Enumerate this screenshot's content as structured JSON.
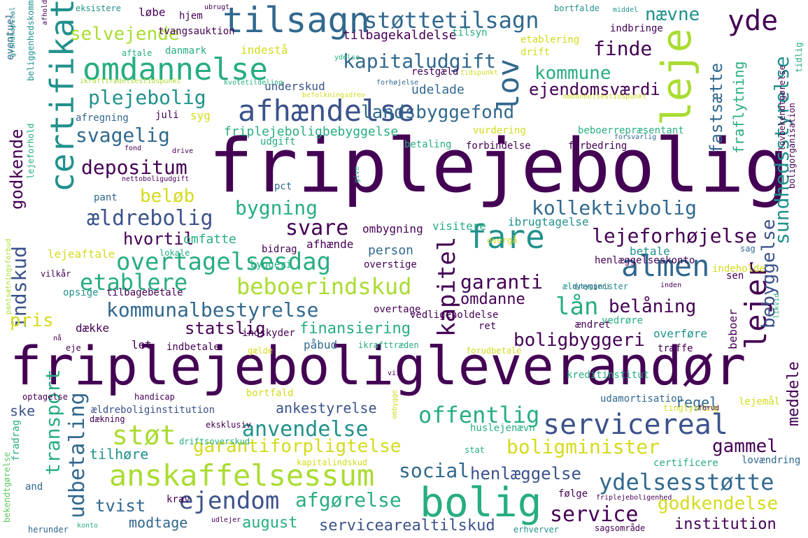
{
  "palette": {
    "purple": "#440154",
    "indigo": "#3b528b",
    "blue": "#31688e",
    "teal": "#21918c",
    "seagreen": "#27ad81",
    "green": "#5ec962",
    "lime": "#aadc32",
    "yellow": "#d3db1e"
  },
  "words": [
    {
      "t": "friplejebolig",
      "c": "purple"
    },
    {
      "t": "friplejeboligleverandør",
      "c": "purple"
    },
    {
      "t": "tilsagn",
      "c": "blue"
    },
    {
      "t": "støttetilsagn",
      "c": "blue"
    },
    {
      "t": "leje",
      "c": "lime"
    },
    {
      "t": "certifikation",
      "c": "teal"
    },
    {
      "t": "omdannelse",
      "c": "seagreen"
    },
    {
      "t": "afhændelse",
      "c": "indigo"
    },
    {
      "t": "lov",
      "c": "blue"
    },
    {
      "t": "selvejende",
      "c": "lime"
    },
    {
      "t": "kapitaludgift",
      "c": "blue"
    },
    {
      "t": "nævne",
      "c": "teal"
    },
    {
      "t": "yde",
      "c": "purple"
    },
    {
      "t": "finde",
      "c": "purple"
    },
    {
      "t": "kommune",
      "c": "seagreen"
    },
    {
      "t": "ejendomsværdi",
      "c": "purple"
    },
    {
      "t": "sundhedsstyrelse",
      "c": "teal"
    },
    {
      "t": "plejebolig",
      "c": "teal"
    },
    {
      "t": "landsbyggefond",
      "c": "blue"
    },
    {
      "t": "svagelig",
      "c": "blue"
    },
    {
      "t": "friplejeboligbebyggelse",
      "c": "seagreen"
    },
    {
      "t": "depositum",
      "c": "purple"
    },
    {
      "t": "beløb",
      "c": "yellow"
    },
    {
      "t": "bygning",
      "c": "seagreen"
    },
    {
      "t": "kollektivbolig",
      "c": "blue"
    },
    {
      "t": "ældrebolig",
      "c": "indigo"
    },
    {
      "t": "svare",
      "c": "purple"
    },
    {
      "t": "hvortil",
      "c": "purple"
    },
    {
      "t": "fare",
      "c": "teal"
    },
    {
      "t": "lejeforhøjelse",
      "c": "purple"
    },
    {
      "t": "almen",
      "c": "blue"
    },
    {
      "t": "overtagelsesdag",
      "c": "seagreen"
    },
    {
      "t": "etablere",
      "c": "seagreen"
    },
    {
      "t": "beboerindskud",
      "c": "lime"
    },
    {
      "t": "garanti",
      "c": "purple"
    },
    {
      "t": "kapitel",
      "c": "purple"
    },
    {
      "t": "lejer",
      "c": "purple"
    },
    {
      "t": "kommunalbestyrelse",
      "c": "blue"
    },
    {
      "t": "lån",
      "c": "seagreen"
    },
    {
      "t": "belåning",
      "c": "purple"
    },
    {
      "t": "statslig",
      "c": "purple"
    },
    {
      "t": "finansiering",
      "c": "seagreen"
    },
    {
      "t": "boligbyggeri",
      "c": "purple"
    },
    {
      "t": "servicereal",
      "c": "indigo"
    },
    {
      "t": "offentlig",
      "c": "seagreen"
    },
    {
      "t": "anvendelse",
      "c": "teal"
    },
    {
      "t": "støt",
      "c": "lime"
    },
    {
      "t": "garantiforpligtelse",
      "c": "yellow"
    },
    {
      "t": "boligminister",
      "c": "yellow"
    },
    {
      "t": "gammel",
      "c": "purple"
    },
    {
      "t": "anskaffelsessum",
      "c": "lime"
    },
    {
      "t": "social",
      "c": "blue"
    },
    {
      "t": "henlæggelse",
      "c": "indigo"
    },
    {
      "t": "bolig",
      "c": "seagreen"
    },
    {
      "t": "ydelsesstøtte",
      "c": "blue"
    },
    {
      "t": "ejendom",
      "c": "indigo"
    },
    {
      "t": "afgørelse",
      "c": "seagreen"
    },
    {
      "t": "service",
      "c": "purple"
    },
    {
      "t": "godkendelse",
      "c": "yellow"
    },
    {
      "t": "udbetaling",
      "c": "blue"
    },
    {
      "t": "transport",
      "c": "seagreen"
    },
    {
      "t": "indskud",
      "c": "indigo"
    },
    {
      "t": "godkende",
      "c": "purple"
    },
    {
      "t": "pris",
      "c": "yellow"
    },
    {
      "t": "fastsætte",
      "c": "blue"
    },
    {
      "t": "fraflytning",
      "c": "seagreen"
    },
    {
      "t": "bebyggelse",
      "c": "indigo"
    },
    {
      "t": "meddele",
      "c": "purple"
    },
    {
      "t": "august",
      "c": "seagreen"
    },
    {
      "t": "servicearealtilskud",
      "c": "indigo"
    },
    {
      "t": "institution",
      "c": "purple"
    },
    {
      "t": "modtage",
      "c": "blue"
    },
    {
      "t": "tvist",
      "c": "blue"
    },
    {
      "t": "tilbagekaldelse",
      "c": "purple"
    },
    {
      "t": "indestå",
      "c": "yellow"
    },
    {
      "t": "underskud",
      "c": "indigo"
    },
    {
      "t": "udelade",
      "c": "blue"
    },
    {
      "t": "ske",
      "c": "indigo"
    },
    {
      "t": "ankestyrelse",
      "c": "indigo"
    },
    {
      "t": "regel",
      "c": "blue"
    },
    {
      "t": "tilhøre",
      "c": "teal"
    },
    {
      "t": "indbetale",
      "c": "purple"
    },
    {
      "t": "ombygning",
      "c": "purple"
    },
    {
      "t": "omdanne",
      "c": "purple"
    },
    {
      "t": "person",
      "c": "blue"
    },
    {
      "t": "betale",
      "c": "teal"
    },
    {
      "t": "lejeaftale",
      "c": "yellow"
    },
    {
      "t": "omfatte",
      "c": "seagreen"
    },
    {
      "t": "bidrag",
      "c": "purple"
    },
    {
      "t": "afhænde",
      "c": "purple"
    },
    {
      "t": "byggeri",
      "c": "seagreen"
    },
    {
      "t": "overstige",
      "c": "purple"
    },
    {
      "t": "visitere",
      "c": "seagreen"
    },
    {
      "t": "ibrugtagelse",
      "c": "teal"
    },
    {
      "t": "henlæggelseskonto",
      "c": "purple"
    },
    {
      "t": "indeholde",
      "c": "yellow"
    },
    {
      "t": "sen",
      "c": "purple"
    },
    {
      "t": "beboer",
      "c": "purple"
    },
    {
      "t": "overtage",
      "c": "purple"
    },
    {
      "t": "vedligeholdelse",
      "c": "purple"
    },
    {
      "t": "vedrøre",
      "c": "seagreen"
    },
    {
      "t": "ændret",
      "c": "purple"
    },
    {
      "t": "ret",
      "c": "purple"
    },
    {
      "t": "overføre",
      "c": "teal"
    },
    {
      "t": "træffe",
      "c": "purple"
    },
    {
      "t": "indskyder",
      "c": "purple"
    },
    {
      "t": "påbud",
      "c": "blue"
    },
    {
      "t": "let",
      "c": "purple"
    },
    {
      "t": "dække",
      "c": "purple"
    },
    {
      "t": "opsige",
      "c": "teal"
    },
    {
      "t": "tilbagebetale",
      "c": "purple"
    },
    {
      "t": "løbe",
      "c": "purple"
    },
    {
      "t": "hjem",
      "c": "purple"
    },
    {
      "t": "tvangsauktion",
      "c": "purple"
    },
    {
      "t": "danmark",
      "c": "seagreen"
    },
    {
      "t": "afregning",
      "c": "blue"
    },
    {
      "t": "juli",
      "c": "purple"
    },
    {
      "t": "syg",
      "c": "yellow"
    },
    {
      "t": "udgift",
      "c": "seagreen"
    },
    {
      "t": "betaling",
      "c": "seagreen"
    },
    {
      "t": "forbindelse",
      "c": "purple"
    },
    {
      "t": "forbedring",
      "c": "purple"
    },
    {
      "t": "pct",
      "c": "blue"
    },
    {
      "t": "pant",
      "c": "blue"
    },
    {
      "t": "etablering",
      "c": "yellow"
    },
    {
      "t": "drift",
      "c": "yellow"
    },
    {
      "t": "indbringe",
      "c": "purple"
    },
    {
      "t": "restgæld",
      "c": "purple"
    },
    {
      "t": "vurdering",
      "c": "yellow"
    },
    {
      "t": "beboerrepræsentant",
      "c": "seagreen"
    },
    {
      "t": "kreditinstitut",
      "c": "seagreen"
    },
    {
      "t": "udamortisation",
      "c": "blue"
    },
    {
      "t": "bortfald",
      "c": "yellow"
    },
    {
      "t": "lejemål",
      "c": "yellow"
    },
    {
      "t": "ældreboliginstitution",
      "c": "indigo"
    },
    {
      "t": "huslejenævn",
      "c": "seagreen"
    },
    {
      "t": "følge",
      "c": "purple"
    },
    {
      "t": "krav",
      "c": "purple"
    },
    {
      "t": "certificere",
      "c": "seagreen"
    },
    {
      "t": "lovændring",
      "c": "blue"
    },
    {
      "t": "fradrag",
      "c": "seagreen"
    },
    {
      "t": "and",
      "c": "blue"
    },
    {
      "t": "handicap",
      "c": "purple"
    },
    {
      "t": "optagelse",
      "c": "purple"
    },
    {
      "t": "vilkår",
      "c": "purple"
    },
    {
      "t": "lokale",
      "c": "seagreen"
    },
    {
      "t": "erhverver",
      "c": "teal"
    },
    {
      "t": "sagsområde",
      "c": "purple"
    },
    {
      "t": "herunder",
      "c": "blue"
    },
    {
      "t": "konto",
      "c": "seagreen"
    },
    {
      "t": "udlejer",
      "c": "purple"
    },
    {
      "t": "eventuel",
      "c": "blue"
    },
    {
      "t": "grundkapital",
      "c": "teal"
    },
    {
      "t": "afholde",
      "c": "purple"
    },
    {
      "t": "eksistere",
      "c": "teal"
    },
    {
      "t": "ubrugt",
      "c": "purple"
    },
    {
      "t": "tilsyn",
      "c": "seagreen"
    },
    {
      "t": "bortfalde",
      "c": "teal"
    },
    {
      "t": "middel",
      "c": "teal"
    },
    {
      "t": "tidlig",
      "c": "seagreen"
    },
    {
      "t": "aftale",
      "c": "seagreen"
    },
    {
      "t": "ydelse",
      "c": "seagreen"
    },
    {
      "t": "boligorganisation",
      "c": "purple"
    },
    {
      "t": "lovbekendtgørelse",
      "c": "purple"
    },
    {
      "t": "beliggenhedskommune",
      "c": "teal"
    },
    {
      "t": "lejeforhold",
      "c": "seagreen"
    },
    {
      "t": "bekendtgørelse",
      "c": "green"
    },
    {
      "t": "pantsætningsforbud",
      "c": "lime"
    },
    {
      "t": "ikrafttrædelsestidspunkt",
      "c": "lime"
    },
    {
      "t": "kvotetildeling",
      "c": "seagreen"
    },
    {
      "t": "omdannelsestidspunkt",
      "c": "yellow"
    },
    {
      "t": "forhøjelse",
      "c": "blue"
    },
    {
      "t": "tidspunkt",
      "c": "yellow"
    },
    {
      "t": "nettoboligudgift",
      "c": "purple"
    },
    {
      "t": "forsvarlig",
      "c": "blue"
    },
    {
      "t": "drive",
      "c": "purple"
    },
    {
      "t": "fond",
      "c": "purple"
    },
    {
      "t": "give",
      "c": "seagreen"
    },
    {
      "t": "overgå",
      "c": "yellow"
    },
    {
      "t": "sag",
      "c": "blue"
    },
    {
      "t": "ældreminister",
      "c": "teal"
    },
    {
      "t": "inden",
      "c": "purple"
    },
    {
      "t": "likvid",
      "c": "seagreen"
    },
    {
      "t": "ikrafttræden",
      "c": "seagreen"
    },
    {
      "t": "forudbetale",
      "c": "yellow"
    },
    {
      "t": "gælde",
      "c": "yellow"
    },
    {
      "t": "eje",
      "c": "purple"
    },
    {
      "t": "nå",
      "c": "purple"
    },
    {
      "t": "vii",
      "c": "purple"
    },
    {
      "t": "tinglysning",
      "c": "yellow"
    },
    {
      "t": "forud",
      "c": "purple"
    },
    {
      "t": "ombygge",
      "c": "yellow"
    },
    {
      "t": "eksklusiv",
      "c": "purple"
    },
    {
      "t": "dækning",
      "c": "purple"
    },
    {
      "t": "driftsoverskud",
      "c": "seagreen"
    },
    {
      "t": "kapitalindskud",
      "c": "yellow"
    },
    {
      "t": "stat",
      "c": "seagreen"
    },
    {
      "t": "friplejeboligenhed",
      "c": "purple"
    },
    {
      "t": "nybyggeri",
      "c": "blue"
    },
    {
      "t": "befolkningsdrev",
      "c": "yellow"
    }
  ]
}
